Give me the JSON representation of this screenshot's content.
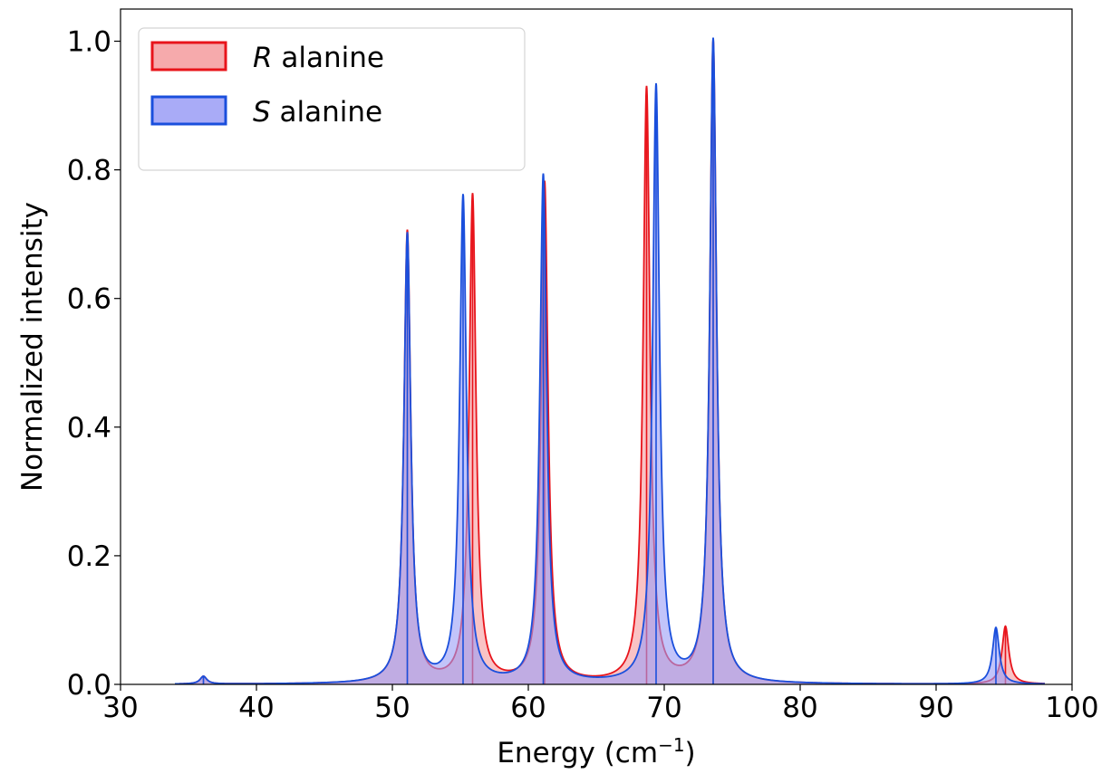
{
  "chart_data": {
    "type": "line",
    "title": "",
    "xlabel_main": "Energy (cm",
    "xlabel_sup": "−1",
    "xlabel_end": ")",
    "ylabel": "Normalized intensity",
    "xlim": [
      30,
      100
    ],
    "ylim": [
      0,
      1.05
    ],
    "x_ticks": [
      30,
      40,
      50,
      60,
      70,
      80,
      90,
      100
    ],
    "y_ticks": [
      0.0,
      0.2,
      0.4,
      0.6,
      0.8,
      1.0
    ],
    "x_tick_labels": [
      "30",
      "40",
      "50",
      "60",
      "70",
      "80",
      "90",
      "100"
    ],
    "y_tick_labels": [
      "0.0",
      "0.2",
      "0.4",
      "0.6",
      "0.8",
      "1.0"
    ],
    "x_range": [
      34,
      98
    ],
    "lorentzian_hwhm": 0.3,
    "grid": false,
    "legend_position": "top-left",
    "series": [
      {
        "name_italic": "R",
        "name_rest": " alanine",
        "line_color": "#e8141b",
        "fill_color": "#f59b9e",
        "peaks": [
          {
            "x": 36.1,
            "y": 0.012
          },
          {
            "x": 51.1,
            "y": 0.703
          },
          {
            "x": 55.9,
            "y": 0.758
          },
          {
            "x": 61.2,
            "y": 0.778
          },
          {
            "x": 68.7,
            "y": 0.925
          },
          {
            "x": 73.6,
            "y": 0.998
          },
          {
            "x": 95.1,
            "y": 0.09
          }
        ]
      },
      {
        "name_italic": "S",
        "name_rest": " alanine",
        "line_color": "#1a4fdc",
        "fill_color": "#9a9cf6",
        "peaks": [
          {
            "x": 36.1,
            "y": 0.012
          },
          {
            "x": 51.1,
            "y": 0.698
          },
          {
            "x": 55.2,
            "y": 0.756
          },
          {
            "x": 61.1,
            "y": 0.79
          },
          {
            "x": 69.4,
            "y": 0.928
          },
          {
            "x": 73.6,
            "y": 1.0
          },
          {
            "x": 94.4,
            "y": 0.088
          }
        ]
      }
    ]
  }
}
